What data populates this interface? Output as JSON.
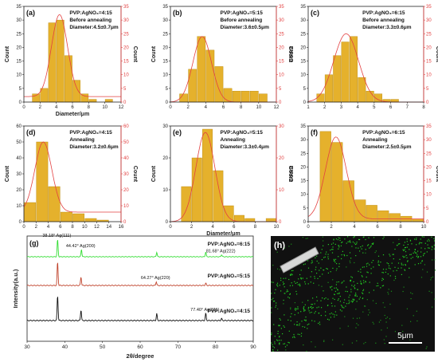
{
  "styles": {
    "bar_color": "#e5b12c",
    "bar_edge": "#b8860b",
    "fit_color": "#e34040",
    "xrd_colors": [
      "#33dd33",
      "#c0442d",
      "#111111"
    ],
    "edx_bg": "#111111",
    "edx_dot": "#22cc22"
  },
  "chart_data": [
    {
      "panel": "(a)",
      "type": "bar",
      "annotation": [
        "PVP:AgNO₃=4:15",
        "Before annealing",
        "Diameter:4.5±0.7μm"
      ],
      "xlabel": "Diameter/μm",
      "ylabel": "Count",
      "ylabel_right": "Count",
      "xlim": [
        0,
        12
      ],
      "xticks": [
        0,
        2,
        4,
        6,
        8,
        10,
        12
      ],
      "ylim": [
        0,
        35
      ],
      "yticks": [
        0,
        5,
        10,
        15,
        20,
        25,
        30,
        35
      ],
      "bar_width": 1,
      "bars": [
        [
          1.5,
          3
        ],
        [
          2.5,
          5
        ],
        [
          3.5,
          29
        ],
        [
          4.5,
          30
        ],
        [
          5.5,
          17
        ],
        [
          6.5,
          8
        ],
        [
          7.5,
          3
        ],
        [
          8.5,
          1
        ],
        [
          10.5,
          1
        ]
      ],
      "fit": {
        "mu": 4.4,
        "sigma": 1.0,
        "peak": 32,
        "base": 2
      }
    },
    {
      "panel": "(b)",
      "type": "bar",
      "annotation": [
        "PVP:AgNO₃=5:15",
        "Before annealing",
        "Diameter:3.6±0.5μm"
      ],
      "xlabel": "",
      "ylabel": "Count",
      "ylabel_right": "Count",
      "xlim": [
        0,
        12
      ],
      "xticks": [
        0,
        2,
        4,
        6,
        8,
        10,
        12
      ],
      "ylim": [
        0,
        35
      ],
      "yticks": [
        0,
        5,
        10,
        15,
        20,
        25,
        30,
        35
      ],
      "bar_width": 1,
      "bars": [
        [
          1.5,
          3
        ],
        [
          2.5,
          12
        ],
        [
          3.5,
          24
        ],
        [
          4.5,
          19
        ],
        [
          5.5,
          13
        ],
        [
          6.5,
          5
        ],
        [
          7.5,
          4
        ],
        [
          8.5,
          4
        ],
        [
          9.5,
          4
        ],
        [
          10.5,
          3
        ]
      ],
      "fit": {
        "mu": 3.6,
        "sigma": 1.05,
        "peak": 24,
        "base": 0
      }
    },
    {
      "panel": "(c)",
      "type": "bar",
      "annotation": [
        "PVP:AgNO₃=6:15",
        "Before annealing",
        "Diameter:3.3±0.6μm"
      ],
      "xlabel": "",
      "ylabel": "Count",
      "ylabel_right": "Count",
      "xlim": [
        1,
        8
      ],
      "xticks": [
        1,
        2,
        3,
        4,
        5,
        6,
        7,
        8
      ],
      "ylim": [
        0,
        35
      ],
      "yticks": [
        0,
        5,
        10,
        15,
        20,
        25,
        30,
        35
      ],
      "bar_width": 0.5,
      "bars": [
        [
          1.75,
          3
        ],
        [
          2.25,
          10
        ],
        [
          2.75,
          17
        ],
        [
          3.25,
          22
        ],
        [
          3.75,
          24
        ],
        [
          4.25,
          9
        ],
        [
          4.75,
          4
        ],
        [
          5.25,
          3
        ],
        [
          5.75,
          1
        ],
        [
          6.25,
          1
        ]
      ],
      "fit": {
        "mu": 3.3,
        "sigma": 0.75,
        "peak": 25,
        "base": 0
      }
    },
    {
      "panel": "(d)",
      "type": "bar",
      "annotation": [
        "PVP:AgNO₃=4:15",
        "Annealing",
        "Diameter:3.2±0.6μm"
      ],
      "xlabel": "",
      "ylabel": "Count",
      "ylabel_right": "Count",
      "xlim": [
        0,
        16
      ],
      "xticks": [
        0,
        2,
        4,
        6,
        8,
        10,
        12,
        14,
        16
      ],
      "ylim": [
        0,
        60
      ],
      "yticks": [
        0,
        10,
        20,
        30,
        40,
        50,
        60
      ],
      "bar_width": 2,
      "bars": [
        [
          1,
          12
        ],
        [
          3,
          50
        ],
        [
          5,
          22
        ],
        [
          7,
          6
        ],
        [
          9,
          5
        ],
        [
          11,
          2
        ],
        [
          13,
          1
        ]
      ],
      "fit": {
        "mu": 3.2,
        "sigma": 1.4,
        "peak": 50,
        "base": 6
      }
    },
    {
      "panel": "(e)",
      "type": "bar",
      "annotation": [
        "PVP:AgNO₃=5:15",
        "Annealing",
        "Diameter:3.3±0.4μm"
      ],
      "xlabel": "Diameter/μm",
      "ylabel": "Count",
      "ylabel_right": "Count",
      "xlim": [
        0,
        10
      ],
      "xticks": [
        0,
        2,
        4,
        6,
        8,
        10
      ],
      "ylim": [
        0,
        30
      ],
      "yticks": [
        0,
        10,
        20,
        30
      ],
      "bar_width": 1,
      "bars": [
        [
          1.5,
          11
        ],
        [
          2.5,
          20
        ],
        [
          3.5,
          29
        ],
        [
          4.5,
          16
        ],
        [
          5.5,
          5
        ],
        [
          6.5,
          2
        ],
        [
          7.5,
          1
        ],
        [
          9.5,
          1
        ]
      ],
      "fit": {
        "mu": 3.3,
        "sigma": 0.9,
        "peak": 28,
        "base": 0
      }
    },
    {
      "panel": "(f)",
      "type": "bar",
      "annotation": [
        "PVP:AgNO₃=6:15",
        "Annealing",
        "Diameter:2.5±0.5μm"
      ],
      "xlabel": "",
      "ylabel": "Count",
      "ylabel_right": "Count",
      "xlim": [
        0,
        10
      ],
      "xticks": [
        0,
        2,
        4,
        6,
        8,
        10
      ],
      "ylim": [
        0,
        35
      ],
      "yticks": [
        0,
        5,
        10,
        15,
        20,
        25,
        30,
        35
      ],
      "bar_width": 1,
      "bars": [
        [
          1.5,
          33
        ],
        [
          2.5,
          29
        ],
        [
          3.5,
          15
        ],
        [
          4.5,
          8
        ],
        [
          5.5,
          6
        ],
        [
          6.5,
          4
        ],
        [
          7.5,
          3
        ],
        [
          8.5,
          2
        ],
        [
          9.5,
          1
        ]
      ],
      "fit": {
        "mu": 2.4,
        "sigma": 0.9,
        "peak": 31,
        "base": 1
      }
    },
    {
      "panel": "(g)",
      "type": "line",
      "xlabel": "2θ/degree",
      "ylabel": "Intensity(a.u.)",
      "xlim": [
        30,
        90
      ],
      "xticks": [
        30,
        40,
        50,
        60,
        70,
        80,
        90
      ],
      "series": [
        {
          "name": "PVP:AgNO₃=6:15",
          "peaks": [
            [
              38.1,
              1.0
            ],
            [
              44.42,
              0.42
            ],
            [
              64.4,
              0.26
            ],
            [
              77.4,
              0.28
            ],
            [
              81.6,
              0.12
            ]
          ]
        },
        {
          "name": "PVP:AgNO₃=5:15",
          "peaks": [
            [
              38.1,
              1.0
            ],
            [
              44.3,
              0.36
            ],
            [
              64.27,
              0.16
            ],
            [
              77.4,
              0.1
            ]
          ]
        },
        {
          "name": "PVP:AgNO₃=4:15",
          "peaks": [
            [
              38.1,
              1.0
            ],
            [
              44.3,
              0.42
            ],
            [
              64.4,
              0.27
            ],
            [
              77.4,
              0.28
            ],
            [
              81.6,
              0.08
            ]
          ]
        }
      ],
      "annotations": [
        {
          "series": 0,
          "x": 38.1,
          "text": "38.18° Ag(111)"
        },
        {
          "series": 0,
          "x": 44.42,
          "text": "44.42° Ag(200)"
        },
        {
          "series": 0,
          "x": 81.6,
          "text": "81.68° Ag(222)"
        },
        {
          "series": 1,
          "x": 64.27,
          "text": "64.27° Ag(220)"
        },
        {
          "series": 2,
          "x": 77.4,
          "text": "77.40° Ag(311)"
        }
      ]
    }
  ],
  "edx": {
    "panel": "(h)",
    "scale_label": "5μm"
  }
}
